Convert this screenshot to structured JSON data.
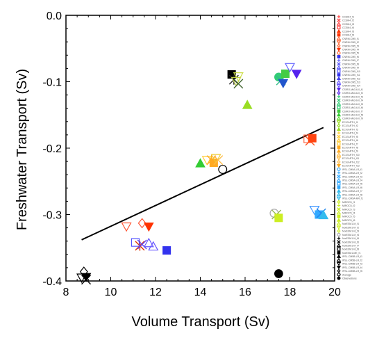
{
  "chart_data": {
    "type": "scatter",
    "title": "",
    "xlabel": "Volume Transport (Sv)",
    "ylabel": "Freshwater Transport (Sv)",
    "xlim": [
      8,
      20
    ],
    "ylim": [
      -0.4,
      0.0
    ],
    "xticks": [
      8,
      10,
      12,
      14,
      16,
      18,
      20
    ],
    "yticks": [
      0.0,
      -0.1,
      -0.2,
      -0.3,
      -0.4
    ],
    "xtick_labels": [
      "8",
      "10",
      "12",
      "14",
      "16",
      "18",
      "20"
    ],
    "ytick_labels": [
      "0.0",
      "-0.1",
      "-0.2",
      "-0.3",
      "-0.4"
    ],
    "grid": false,
    "legend_position": "right",
    "regression_line": {
      "x": [
        8.7,
        19.5
      ],
      "y": [
        -0.338,
        -0.169
      ]
    },
    "points": [
      {
        "x": 10.7,
        "y": -0.318,
        "marker": "triangle-down-open",
        "color": "#ff5533"
      },
      {
        "x": 11.4,
        "y": -0.313,
        "marker": "diamond-open",
        "color": "#ff5533"
      },
      {
        "x": 11.7,
        "y": -0.318,
        "marker": "triangle-down",
        "color": "#ff3300"
      },
      {
        "x": 11.3,
        "y": -0.347,
        "marker": "star",
        "color": "#dd3300"
      },
      {
        "x": 11.1,
        "y": -0.342,
        "marker": "square-open",
        "color": "#5555ff"
      },
      {
        "x": 11.4,
        "y": -0.345,
        "marker": "cross",
        "color": "#6644ee"
      },
      {
        "x": 11.7,
        "y": -0.343,
        "marker": "triangle-open",
        "color": "#6655ff"
      },
      {
        "x": 11.9,
        "y": -0.348,
        "marker": "triangle-up-open",
        "color": "#6655ff"
      },
      {
        "x": 12.5,
        "y": -0.354,
        "marker": "square",
        "color": "#3333ee"
      },
      {
        "x": 15.4,
        "y": -0.089,
        "marker": "square",
        "color": "#000000"
      },
      {
        "x": 15.5,
        "y": -0.097,
        "marker": "star",
        "color": "#222222"
      },
      {
        "x": 15.6,
        "y": -0.099,
        "marker": "triangle-down-open",
        "color": "#bbcc44"
      },
      {
        "x": 15.7,
        "y": -0.092,
        "marker": "triangle-down-open",
        "color": "#ccdd44"
      },
      {
        "x": 15.7,
        "y": -0.103,
        "marker": "cross",
        "color": "#446633"
      },
      {
        "x": 16.1,
        "y": -0.135,
        "marker": "triangle",
        "color": "#99dd22"
      },
      {
        "x": 17.5,
        "y": -0.093,
        "marker": "circle",
        "color": "#33cc77"
      },
      {
        "x": 17.6,
        "y": -0.098,
        "marker": "cross",
        "color": "#33bb88"
      },
      {
        "x": 17.7,
        "y": -0.102,
        "marker": "triangle-down",
        "color": "#2255cc"
      },
      {
        "x": 17.8,
        "y": -0.088,
        "marker": "square",
        "color": "#44cc44"
      },
      {
        "x": 18.0,
        "y": -0.078,
        "marker": "triangle-down-open",
        "color": "#6666ff"
      },
      {
        "x": 18.3,
        "y": -0.088,
        "marker": "triangle-down",
        "color": "#5522ee"
      },
      {
        "x": 14.0,
        "y": -0.223,
        "marker": "triangle",
        "color": "#33cc33"
      },
      {
        "x": 14.3,
        "y": -0.218,
        "marker": "triangle-down-open",
        "color": "#ffcc33"
      },
      {
        "x": 14.5,
        "y": -0.218,
        "marker": "star",
        "color": "#ffaa22"
      },
      {
        "x": 14.6,
        "y": -0.222,
        "marker": "square",
        "color": "#ffaa22"
      },
      {
        "x": 14.7,
        "y": -0.215,
        "marker": "triangle-down-open",
        "color": "#eecc33"
      },
      {
        "x": 14.8,
        "y": -0.218,
        "marker": "cross",
        "color": "#ffbb44"
      },
      {
        "x": 18.8,
        "y": -0.186,
        "marker": "square-open",
        "color": "#ff6644"
      },
      {
        "x": 18.9,
        "y": -0.189,
        "marker": "cross",
        "color": "#ff5522"
      },
      {
        "x": 19.0,
        "y": -0.185,
        "marker": "square",
        "color": "#ff4411"
      },
      {
        "x": 17.3,
        "y": -0.298,
        "marker": "circle-open",
        "color": "#aaaaaa"
      },
      {
        "x": 17.4,
        "y": -0.3,
        "marker": "cross",
        "color": "#99bb55"
      },
      {
        "x": 17.5,
        "y": -0.305,
        "marker": "square",
        "color": "#ccee22"
      },
      {
        "x": 19.1,
        "y": -0.293,
        "marker": "triangle-down-open",
        "color": "#4499ff"
      },
      {
        "x": 19.3,
        "y": -0.3,
        "marker": "square",
        "color": "#33aaff"
      },
      {
        "x": 19.4,
        "y": -0.298,
        "marker": "cross",
        "color": "#2288ee"
      },
      {
        "x": 19.5,
        "y": -0.301,
        "marker": "triangle",
        "color": "#33bbee"
      },
      {
        "x": 8.8,
        "y": -0.386,
        "marker": "diamond-open",
        "color": "#000000"
      },
      {
        "x": 8.7,
        "y": -0.395,
        "marker": "triangle-down-open",
        "color": "#000000"
      },
      {
        "x": 8.9,
        "y": -0.394,
        "marker": "triangle-down",
        "color": "#000000"
      },
      {
        "x": 8.9,
        "y": -0.398,
        "marker": "cross",
        "color": "#000000"
      },
      {
        "x": 15.0,
        "y": -0.232,
        "marker": "circle-open",
        "color": "#000000"
      },
      {
        "x": 17.5,
        "y": -0.389,
        "marker": "circle",
        "color": "#000000"
      }
    ],
    "legend": {
      "entries": [
        {
          "label": "CCSM4_f1",
          "marker": "plus",
          "color": "#ff4444"
        },
        {
          "label": "CCSM4_f2",
          "marker": "cross",
          "color": "#ff4444"
        },
        {
          "label": "CCSM4_f3",
          "marker": "triangle-open",
          "color": "#ff4444"
        },
        {
          "label": "CCSM4_f4",
          "marker": "square-open",
          "color": "#ff4444"
        },
        {
          "label": "CCSM4_f5",
          "marker": "triangle",
          "color": "#ff3300"
        },
        {
          "label": "CCSM4_f6",
          "marker": "square",
          "color": "#ff3300"
        },
        {
          "label": "CNRM-CM5_f1",
          "marker": "triangle-up-open",
          "color": "#ff6633"
        },
        {
          "label": "CNRM-CM5_f2",
          "marker": "triangle-down-open",
          "color": "#ff6633"
        },
        {
          "label": "CNRM-CM5_f3",
          "marker": "diamond-open",
          "color": "#ff6633"
        },
        {
          "label": "CNRM-CM5_f4",
          "marker": "triangle-down",
          "color": "#ff3300"
        },
        {
          "label": "CNRM-CM5_f5",
          "marker": "circle-open",
          "color": "#ff6633"
        },
        {
          "label": "CNRM-CM5_f6",
          "marker": "square",
          "color": "#3333ee"
        },
        {
          "label": "CNRM-CM5_f7",
          "marker": "plus",
          "color": "#5555ff"
        },
        {
          "label": "CNRM-CM5_f8",
          "marker": "cross",
          "color": "#5555ff"
        },
        {
          "label": "CNRM-CM5_f9",
          "marker": "triangle-open",
          "color": "#5555ff"
        },
        {
          "label": "CNRM-CM5_f10",
          "marker": "square-open",
          "color": "#5555ff"
        },
        {
          "label": "CNRM-CM5_f11",
          "marker": "square",
          "color": "#3333ee"
        },
        {
          "label": "CNRM-CM5_f12",
          "marker": "triangle",
          "color": "#4444ee"
        },
        {
          "label": "CNRM-CM5_f13",
          "marker": "triangle-up-open",
          "color": "#6655ff"
        },
        {
          "label": "CNRM-CM5_f14",
          "marker": "triangle-down-open",
          "color": "#6655ff"
        },
        {
          "label": "CSIRO-Mk3-6-0_f1",
          "marker": "triangle-down",
          "color": "#5522ee"
        },
        {
          "label": "CSIRO-Mk3-6-0_f2",
          "marker": "diamond-open",
          "color": "#5522ee"
        },
        {
          "label": "CSIRO-Mk3-6-0_f3",
          "marker": "plus",
          "color": "#33cc77"
        },
        {
          "label": "CSIRO-Mk3-6-0_f4",
          "marker": "cross",
          "color": "#33cc77"
        },
        {
          "label": "CSIRO-Mk3-6-0_f5",
          "marker": "triangle-open",
          "color": "#33cc77"
        },
        {
          "label": "CSIRO-Mk3-6-0_f6",
          "marker": "square-open",
          "color": "#33cc77"
        },
        {
          "label": "CSIRO-Mk3-6-0_f7",
          "marker": "square",
          "color": "#44cc44"
        },
        {
          "label": "CSIRO-Mk3-6-0_f8",
          "marker": "triangle",
          "color": "#33cc33"
        },
        {
          "label": "CSIRO-Mk3-6-0_f9",
          "marker": "triangle-up-open",
          "color": "#66dd33"
        },
        {
          "label": "EC-EARTH_f1",
          "marker": "triangle-down-open",
          "color": "#99dd22"
        },
        {
          "label": "EC-EARTH_f2",
          "marker": "diamond-open",
          "color": "#99dd22"
        },
        {
          "label": "EC-EARTH_f3",
          "marker": "triangle",
          "color": "#99dd22"
        },
        {
          "label": "EC-EARTH_f4",
          "marker": "plus",
          "color": "#ffcc33"
        },
        {
          "label": "EC-EARTH_f5",
          "marker": "cross",
          "color": "#ffcc33"
        },
        {
          "label": "EC-EARTH_f6",
          "marker": "triangle-open",
          "color": "#ffcc33"
        },
        {
          "label": "EC-EARTH_f7",
          "marker": "square-open",
          "color": "#ffcc33"
        },
        {
          "label": "EC-EARTH_f8",
          "marker": "square",
          "color": "#ffaa22"
        },
        {
          "label": "EC-EARTH_f9",
          "marker": "triangle",
          "color": "#ffaa22"
        },
        {
          "label": "EC-EARTH_f10",
          "marker": "triangle-up-open",
          "color": "#ffbb44"
        },
        {
          "label": "EC-EARTH_f11",
          "marker": "triangle-down-open",
          "color": "#ffbb44"
        },
        {
          "label": "EC-EARTH_f12",
          "marker": "diamond-open",
          "color": "#ffbb44"
        },
        {
          "label": "EC-EARTH_f13",
          "marker": "triangle-down",
          "color": "#ffaa22"
        },
        {
          "label": "IPSL-CM5A-LR_f1",
          "marker": "circle-open",
          "color": "#33aaff"
        },
        {
          "label": "IPSL-CM5A-LR_f2",
          "marker": "plus",
          "color": "#33aaff"
        },
        {
          "label": "IPSL-CM5A-LR_f3",
          "marker": "cross",
          "color": "#33aaff"
        },
        {
          "label": "IPSL-CM5A-LR_f4",
          "marker": "triangle-open",
          "color": "#33aaff"
        },
        {
          "label": "IPSL-CM5A-LR_f5",
          "marker": "square-open",
          "color": "#33aaff"
        },
        {
          "label": "IPSL-CM5A-LR_f6",
          "marker": "square",
          "color": "#33aaff"
        },
        {
          "label": "IPSL-CM5A-LR_f7",
          "marker": "triangle",
          "color": "#33bbee"
        },
        {
          "label": "IPSL-CM5A-LR_f8",
          "marker": "triangle-up-open",
          "color": "#33bbee"
        },
        {
          "label": "IPSL-CM5A-MR_f1",
          "marker": "triangle-down-open",
          "color": "#33bbee"
        },
        {
          "label": "MIROC5_f1",
          "marker": "diamond-open",
          "color": "#ccee22"
        },
        {
          "label": "MIROC5_f2",
          "marker": "plus",
          "color": "#ccee22"
        },
        {
          "label": "MIROC5_f3",
          "marker": "cross",
          "color": "#ccee22"
        },
        {
          "label": "MIROC5_f4",
          "marker": "triangle-open",
          "color": "#ccee22"
        },
        {
          "label": "MIROC5_f5",
          "marker": "square",
          "color": "#ccee22"
        },
        {
          "label": "MIROC5_f6",
          "marker": "triangle",
          "color": "#ccee22"
        },
        {
          "label": "NorESM1-M_f1",
          "marker": "triangle-up-open",
          "color": "#ccee22"
        },
        {
          "label": "NorESM1-M_f2",
          "marker": "triangle-down-open",
          "color": "#ccee22"
        },
        {
          "label": "NorESM1-M_f3",
          "marker": "diamond-open",
          "color": "#ccee22"
        },
        {
          "label": "NorESM1-M_f4",
          "marker": "circle-open",
          "color": "#aaaaaa"
        },
        {
          "label": "NorESM1-M_f5",
          "marker": "plus",
          "color": "#000000"
        },
        {
          "label": "NorESM1-M_f6",
          "marker": "cross",
          "color": "#000000"
        },
        {
          "label": "NorESM1-M_f7",
          "marker": "triangle-open",
          "color": "#000000"
        },
        {
          "label": "NorESM1-M_f8",
          "marker": "square-open",
          "color": "#000000"
        },
        {
          "label": "NorESM1-ME_f1",
          "marker": "square",
          "color": "#000000"
        },
        {
          "label": "IPSL-CM5B-LR_f1",
          "marker": "triangle",
          "color": "#000000"
        },
        {
          "label": "IPSL-CM5B-LR_f2",
          "marker": "triangle-up-open",
          "color": "#000000"
        },
        {
          "label": "IPSL-CM5B-LR_f3",
          "marker": "triangle-down-open",
          "color": "#000000"
        },
        {
          "label": "IPSL-CM5B-LR_f4",
          "marker": "triangle-down",
          "color": "#000000"
        },
        {
          "label": "IPSL-CM5B-LR_f5",
          "marker": "diamond-open",
          "color": "#000000"
        },
        {
          "label": "Average",
          "marker": "circle-open",
          "color": "#000000"
        },
        {
          "label": "Observations",
          "marker": "circle",
          "color": "#000000"
        }
      ]
    }
  }
}
